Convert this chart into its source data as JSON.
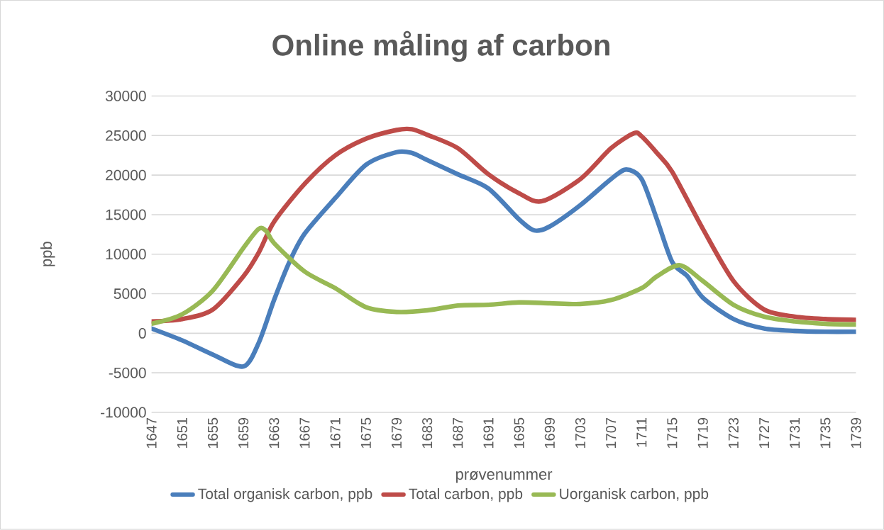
{
  "chart_data": {
    "type": "line",
    "title": "Online måling af carbon",
    "xlabel": "prøvenummer",
    "ylabel": "ppb",
    "xlim": [
      1647,
      1739
    ],
    "xticks": [
      1647,
      1651,
      1655,
      1659,
      1663,
      1667,
      1671,
      1675,
      1679,
      1683,
      1687,
      1691,
      1695,
      1699,
      1703,
      1707,
      1711,
      1715,
      1719,
      1723,
      1727,
      1731,
      1735,
      1739
    ],
    "ylim": [
      -10000,
      30000
    ],
    "yticks": [
      -10000,
      -5000,
      0,
      5000,
      10000,
      15000,
      20000,
      25000,
      30000
    ],
    "grid": "y",
    "legend": "bottom",
    "marker": "none",
    "line_style": "solid",
    "series": [
      {
        "name": "Total organisk carbon, ppb",
        "color": "#4a7ebb",
        "x": [
          1647,
          1651,
          1655,
          1659,
          1661,
          1663,
          1665,
          1667,
          1671,
          1675,
          1679,
          1681,
          1683,
          1687,
          1691,
          1695,
          1697,
          1699,
          1703,
          1707,
          1709,
          1711,
          1713,
          1715,
          1717,
          1719,
          1723,
          1727,
          1731,
          1735,
          1739
        ],
        "values": [
          600,
          -900,
          -2700,
          -4200,
          -1200,
          4200,
          9000,
          12600,
          17100,
          21300,
          22900,
          22800,
          21900,
          20100,
          18300,
          14400,
          13000,
          13500,
          16200,
          19500,
          20700,
          19500,
          14400,
          9000,
          7200,
          4500,
          1800,
          600,
          300,
          200,
          200
        ]
      },
      {
        "name": "Total carbon, ppb",
        "color": "#be4b48",
        "x": [
          1647,
          1651,
          1655,
          1659,
          1661,
          1663,
          1667,
          1671,
          1675,
          1679,
          1681,
          1683,
          1687,
          1691,
          1695,
          1698,
          1703,
          1707,
          1710,
          1711,
          1713,
          1715,
          1719,
          1723,
          1727,
          1731,
          1735,
          1739
        ],
        "values": [
          1500,
          1800,
          3000,
          7200,
          10200,
          14100,
          18900,
          22500,
          24600,
          25700,
          25800,
          25100,
          23400,
          20100,
          17700,
          16700,
          19500,
          23400,
          25300,
          24900,
          22800,
          20400,
          13200,
          6600,
          3000,
          2100,
          1800,
          1700
        ]
      },
      {
        "name": "Uorganisk carbon, ppb",
        "color": "#98b954",
        "x": [
          1647,
          1651,
          1655,
          1659,
          1661,
          1662,
          1663,
          1667,
          1671,
          1675,
          1679,
          1683,
          1687,
          1691,
          1695,
          1699,
          1703,
          1707,
          1711,
          1713,
          1716,
          1719,
          1723,
          1727,
          1731,
          1735,
          1739
        ],
        "values": [
          1200,
          2400,
          5400,
          10800,
          13200,
          12900,
          11400,
          7800,
          5700,
          3300,
          2700,
          2900,
          3500,
          3600,
          3900,
          3800,
          3700,
          4200,
          5700,
          7200,
          8600,
          6600,
          3600,
          2100,
          1500,
          1200,
          1100
        ]
      }
    ]
  }
}
